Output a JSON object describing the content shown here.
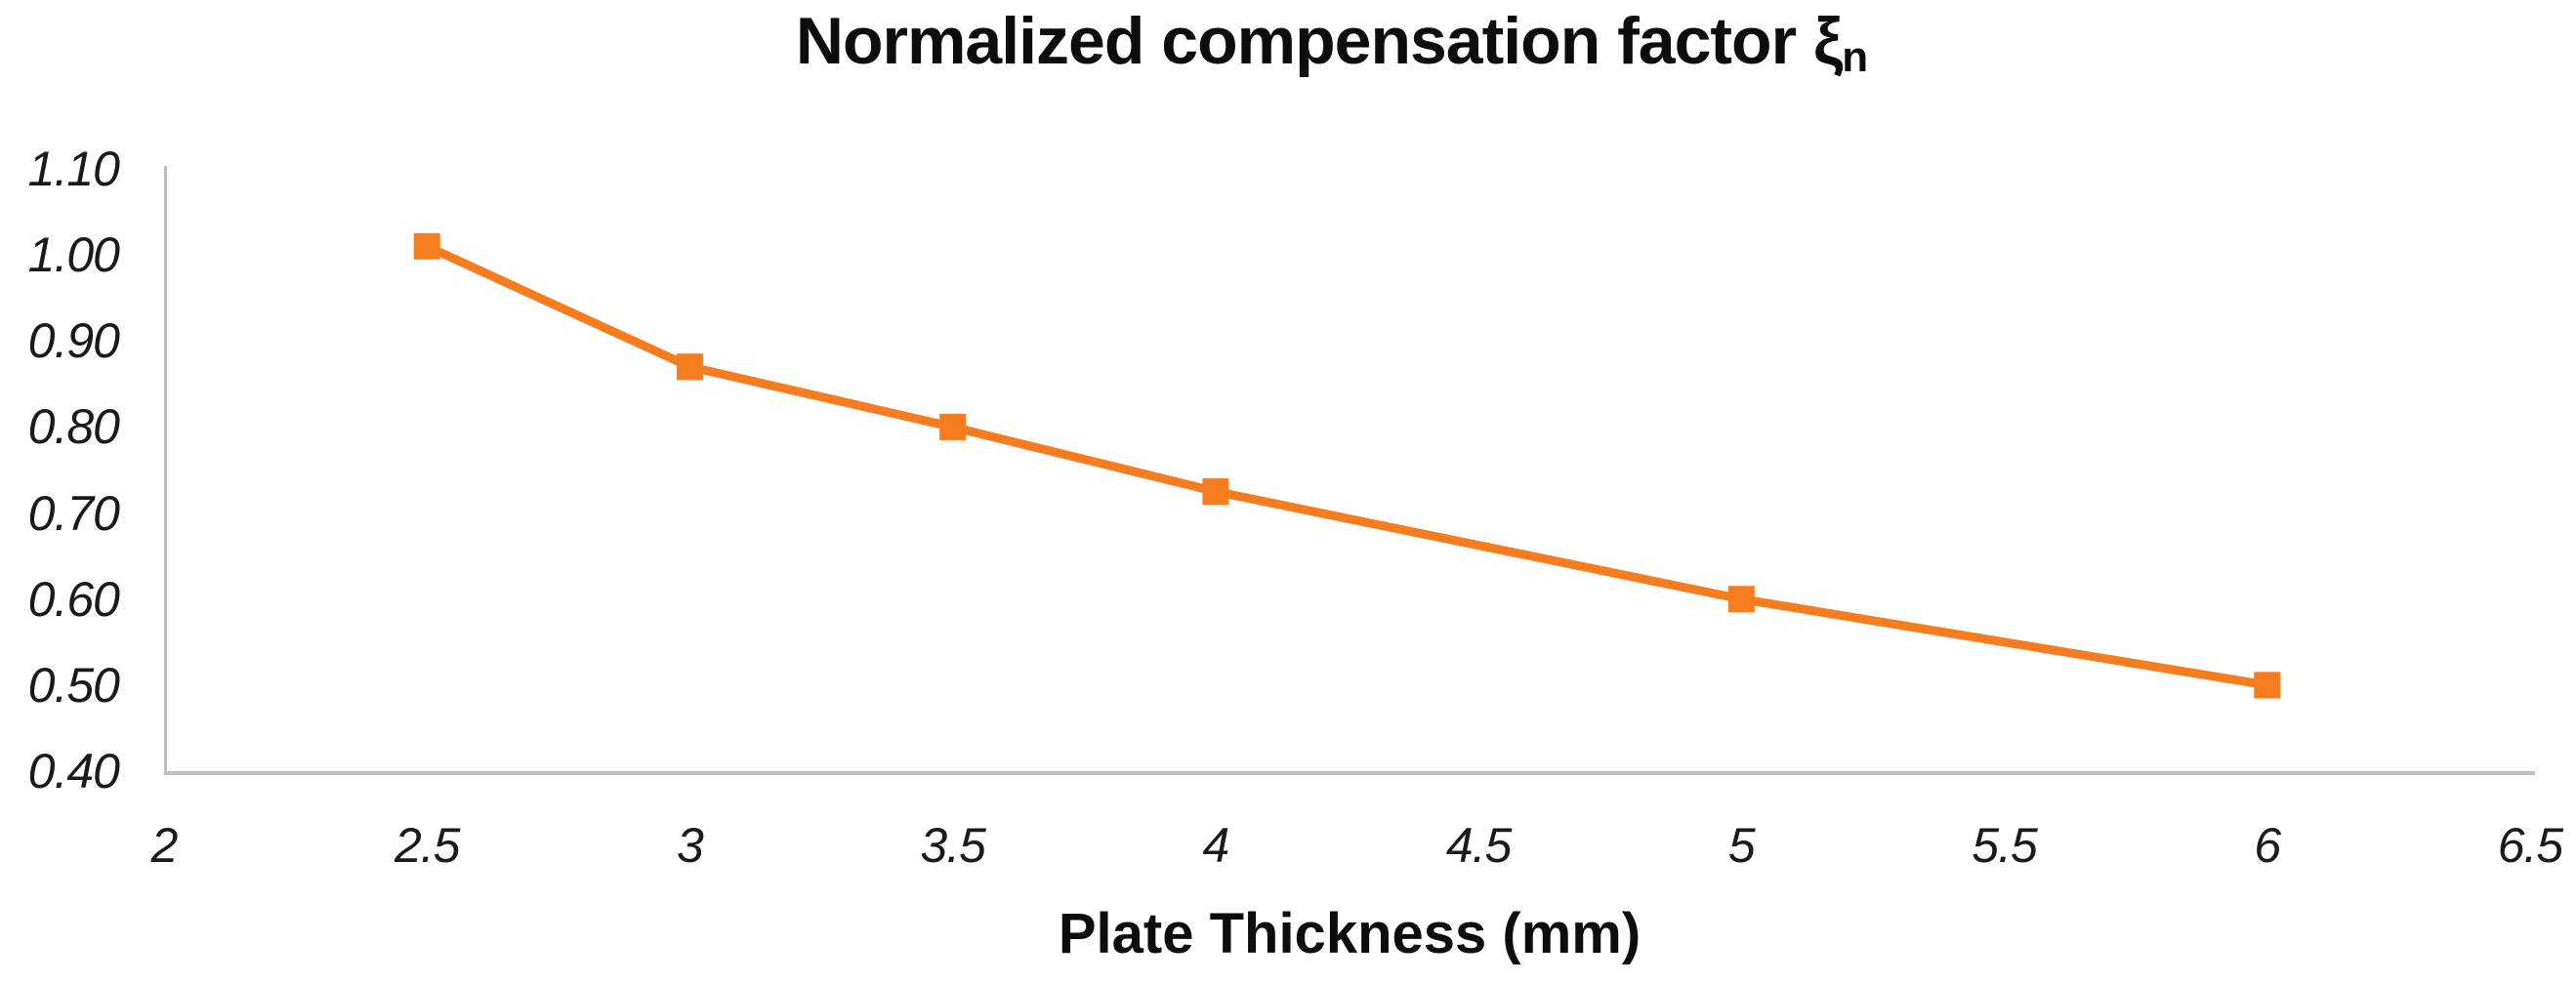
{
  "chart_data": {
    "type": "line",
    "title": "Normalized compensation factor ξn",
    "title_parts": {
      "main": "Normalized compensation factor ξ",
      "subscript": "n"
    },
    "xlabel": "Plate Thickness (mm)",
    "ylabel": "",
    "x": [
      2.5,
      3,
      3.5,
      4,
      5,
      6
    ],
    "values": [
      1.01,
      0.87,
      0.8,
      0.725,
      0.6,
      0.5
    ],
    "xlim": [
      2,
      6.5
    ],
    "ylim": [
      0.4,
      1.1
    ],
    "x_tick_values": [
      2,
      2.5,
      3,
      3.5,
      4,
      4.5,
      5,
      5.5,
      6,
      6.5
    ],
    "x_tick_labels": [
      "2",
      "2.5",
      "3",
      "3.5",
      "4",
      "4.5",
      "5",
      "5.5",
      "6",
      "6.5"
    ],
    "y_tick_values": [
      1.1,
      1.0,
      0.9,
      0.8,
      0.7,
      0.6,
      0.5,
      0.4
    ],
    "y_tick_labels": [
      "1.10",
      "1.00",
      "0.90",
      "0.80",
      "0.70",
      "0.60",
      "0.50",
      "0.40"
    ],
    "grid": false,
    "legend": "none",
    "marker": "square",
    "colors": {
      "series": "#F67C20",
      "axis": "#BFBFBF",
      "text": "#1A1A1A"
    }
  }
}
